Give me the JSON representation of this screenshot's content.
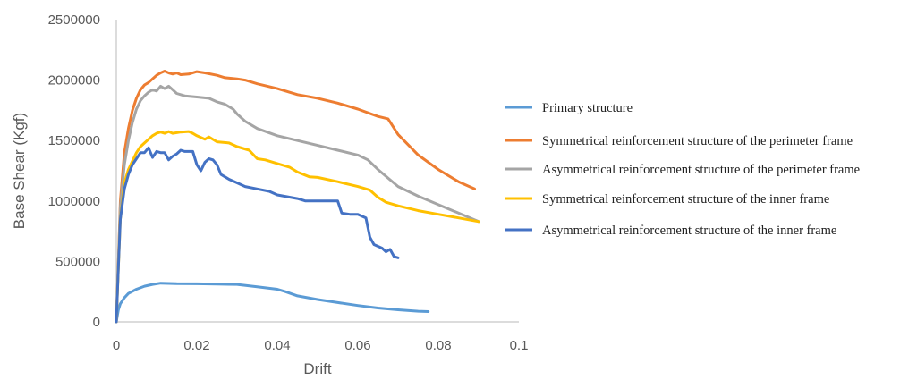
{
  "chart_data": {
    "type": "line",
    "title": "",
    "xlabel": "Drift",
    "ylabel": "Base Shear (Kgf)",
    "xlim": [
      0,
      0.1
    ],
    "ylim": [
      0,
      2500000
    ],
    "x_ticks": [
      "0",
      "0.02",
      "0.04",
      "0.06",
      "0.08",
      "0.1"
    ],
    "y_ticks": [
      "0",
      "500000",
      "1000000",
      "1500000",
      "2000000",
      "2500000"
    ],
    "grid": false,
    "legend_position": "right",
    "series": [
      {
        "name": "Primary structure",
        "color": "#5b9bd5",
        "points": [
          [
            0,
            0
          ],
          [
            0.0005,
            100000
          ],
          [
            0.001,
            150000
          ],
          [
            0.002,
            200000
          ],
          [
            0.003,
            235000
          ],
          [
            0.005,
            270000
          ],
          [
            0.007,
            295000
          ],
          [
            0.009,
            310000
          ],
          [
            0.011,
            320000
          ],
          [
            0.013,
            318000
          ],
          [
            0.015,
            316000
          ],
          [
            0.02,
            315000
          ],
          [
            0.025,
            312000
          ],
          [
            0.03,
            310000
          ],
          [
            0.035,
            290000
          ],
          [
            0.04,
            270000
          ],
          [
            0.042,
            250000
          ],
          [
            0.045,
            215000
          ],
          [
            0.05,
            185000
          ],
          [
            0.055,
            160000
          ],
          [
            0.06,
            135000
          ],
          [
            0.065,
            115000
          ],
          [
            0.07,
            100000
          ],
          [
            0.075,
            88000
          ],
          [
            0.0775,
            85000
          ]
        ]
      },
      {
        "name": "Symmetrical reinforcement structure of the perimeter frame",
        "color": "#ed7d31",
        "points": [
          [
            0,
            0
          ],
          [
            0.0005,
            500000
          ],
          [
            0.001,
            1000000
          ],
          [
            0.002,
            1400000
          ],
          [
            0.003,
            1600000
          ],
          [
            0.004,
            1750000
          ],
          [
            0.005,
            1850000
          ],
          [
            0.006,
            1920000
          ],
          [
            0.007,
            1960000
          ],
          [
            0.008,
            1980000
          ],
          [
            0.009,
            2010000
          ],
          [
            0.01,
            2040000
          ],
          [
            0.011,
            2060000
          ],
          [
            0.012,
            2075000
          ],
          [
            0.013,
            2060000
          ],
          [
            0.014,
            2050000
          ],
          [
            0.015,
            2060000
          ],
          [
            0.016,
            2045000
          ],
          [
            0.018,
            2050000
          ],
          [
            0.02,
            2070000
          ],
          [
            0.022,
            2060000
          ],
          [
            0.025,
            2040000
          ],
          [
            0.027,
            2020000
          ],
          [
            0.03,
            2010000
          ],
          [
            0.032,
            2000000
          ],
          [
            0.035,
            1970000
          ],
          [
            0.04,
            1930000
          ],
          [
            0.045,
            1880000
          ],
          [
            0.05,
            1850000
          ],
          [
            0.055,
            1810000
          ],
          [
            0.06,
            1760000
          ],
          [
            0.065,
            1700000
          ],
          [
            0.0675,
            1680000
          ],
          [
            0.07,
            1550000
          ],
          [
            0.075,
            1380000
          ],
          [
            0.08,
            1260000
          ],
          [
            0.085,
            1160000
          ],
          [
            0.089,
            1100000
          ]
        ]
      },
      {
        "name": "Asymmetrical reinforcement structure of the perimeter frame",
        "color": "#a5a5a5",
        "points": [
          [
            0,
            0
          ],
          [
            0.0005,
            480000
          ],
          [
            0.001,
            950000
          ],
          [
            0.002,
            1300000
          ],
          [
            0.003,
            1500000
          ],
          [
            0.004,
            1650000
          ],
          [
            0.005,
            1760000
          ],
          [
            0.006,
            1830000
          ],
          [
            0.007,
            1870000
          ],
          [
            0.008,
            1900000
          ],
          [
            0.009,
            1920000
          ],
          [
            0.01,
            1910000
          ],
          [
            0.011,
            1950000
          ],
          [
            0.012,
            1930000
          ],
          [
            0.013,
            1950000
          ],
          [
            0.014,
            1920000
          ],
          [
            0.015,
            1890000
          ],
          [
            0.017,
            1870000
          ],
          [
            0.02,
            1860000
          ],
          [
            0.023,
            1850000
          ],
          [
            0.025,
            1820000
          ],
          [
            0.027,
            1800000
          ],
          [
            0.029,
            1760000
          ],
          [
            0.03,
            1720000
          ],
          [
            0.032,
            1660000
          ],
          [
            0.035,
            1600000
          ],
          [
            0.04,
            1540000
          ],
          [
            0.045,
            1500000
          ],
          [
            0.05,
            1460000
          ],
          [
            0.055,
            1420000
          ],
          [
            0.06,
            1380000
          ],
          [
            0.0625,
            1340000
          ],
          [
            0.065,
            1260000
          ],
          [
            0.07,
            1120000
          ],
          [
            0.075,
            1040000
          ],
          [
            0.08,
            970000
          ],
          [
            0.085,
            900000
          ],
          [
            0.09,
            830000
          ]
        ]
      },
      {
        "name": "Symmetrical reinforcement structure of the inner frame",
        "color": "#ffc000",
        "points": [
          [
            0,
            0
          ],
          [
            0.0005,
            450000
          ],
          [
            0.001,
            850000
          ],
          [
            0.002,
            1150000
          ],
          [
            0.003,
            1260000
          ],
          [
            0.004,
            1330000
          ],
          [
            0.005,
            1400000
          ],
          [
            0.006,
            1450000
          ],
          [
            0.007,
            1480000
          ],
          [
            0.008,
            1510000
          ],
          [
            0.009,
            1540000
          ],
          [
            0.01,
            1560000
          ],
          [
            0.011,
            1570000
          ],
          [
            0.012,
            1560000
          ],
          [
            0.013,
            1575000
          ],
          [
            0.014,
            1560000
          ],
          [
            0.016,
            1570000
          ],
          [
            0.018,
            1575000
          ],
          [
            0.019,
            1560000
          ],
          [
            0.02,
            1540000
          ],
          [
            0.022,
            1510000
          ],
          [
            0.023,
            1530000
          ],
          [
            0.025,
            1490000
          ],
          [
            0.028,
            1480000
          ],
          [
            0.03,
            1450000
          ],
          [
            0.033,
            1420000
          ],
          [
            0.035,
            1350000
          ],
          [
            0.037,
            1340000
          ],
          [
            0.04,
            1310000
          ],
          [
            0.043,
            1280000
          ],
          [
            0.045,
            1240000
          ],
          [
            0.048,
            1200000
          ],
          [
            0.05,
            1195000
          ],
          [
            0.055,
            1160000
          ],
          [
            0.06,
            1120000
          ],
          [
            0.063,
            1090000
          ],
          [
            0.065,
            1030000
          ],
          [
            0.067,
            990000
          ],
          [
            0.07,
            960000
          ],
          [
            0.075,
            920000
          ],
          [
            0.08,
            890000
          ],
          [
            0.085,
            860000
          ],
          [
            0.09,
            830000
          ]
        ]
      },
      {
        "name": "Asymmetrical reinforcement structure of the inner frame",
        "color": "#4472c4",
        "points": [
          [
            0,
            0
          ],
          [
            0.0005,
            450000
          ],
          [
            0.001,
            850000
          ],
          [
            0.002,
            1100000
          ],
          [
            0.003,
            1220000
          ],
          [
            0.004,
            1300000
          ],
          [
            0.005,
            1350000
          ],
          [
            0.006,
            1400000
          ],
          [
            0.007,
            1400000
          ],
          [
            0.008,
            1440000
          ],
          [
            0.009,
            1360000
          ],
          [
            0.01,
            1410000
          ],
          [
            0.011,
            1400000
          ],
          [
            0.012,
            1400000
          ],
          [
            0.013,
            1340000
          ],
          [
            0.014,
            1370000
          ],
          [
            0.015,
            1390000
          ],
          [
            0.016,
            1420000
          ],
          [
            0.017,
            1410000
          ],
          [
            0.018,
            1410000
          ],
          [
            0.019,
            1410000
          ],
          [
            0.02,
            1300000
          ],
          [
            0.021,
            1250000
          ],
          [
            0.022,
            1320000
          ],
          [
            0.023,
            1350000
          ],
          [
            0.024,
            1340000
          ],
          [
            0.025,
            1300000
          ],
          [
            0.026,
            1220000
          ],
          [
            0.027,
            1200000
          ],
          [
            0.028,
            1180000
          ],
          [
            0.03,
            1150000
          ],
          [
            0.032,
            1120000
          ],
          [
            0.035,
            1100000
          ],
          [
            0.038,
            1080000
          ],
          [
            0.04,
            1050000
          ],
          [
            0.045,
            1020000
          ],
          [
            0.047,
            1000000
          ],
          [
            0.05,
            1000000
          ],
          [
            0.055,
            1000000
          ],
          [
            0.056,
            900000
          ],
          [
            0.058,
            890000
          ],
          [
            0.06,
            890000
          ],
          [
            0.062,
            860000
          ],
          [
            0.063,
            700000
          ],
          [
            0.064,
            640000
          ],
          [
            0.066,
            610000
          ],
          [
            0.067,
            580000
          ],
          [
            0.068,
            600000
          ],
          [
            0.069,
            540000
          ],
          [
            0.07,
            530000
          ]
        ]
      }
    ]
  }
}
